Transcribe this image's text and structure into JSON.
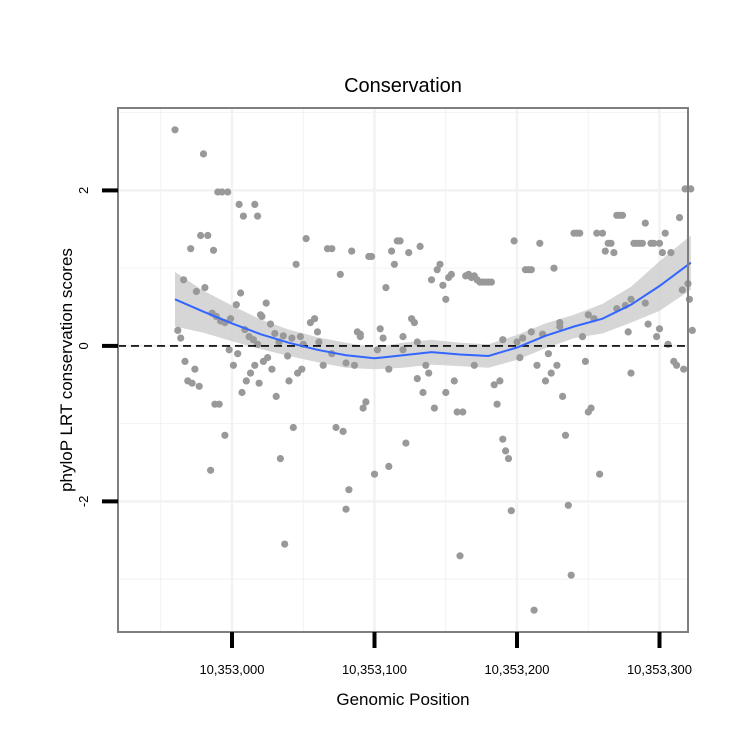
{
  "chart_data": {
    "type": "scatter",
    "title": "Conservation",
    "xlabel": "Genomic Position",
    "ylabel": "phyloP LRT conservation scores",
    "xlim": [
      10352920,
      10353320
    ],
    "ylim": [
      -3.68,
      3.06
    ],
    "x_ticks": [
      {
        "value": 10353000,
        "label": "10,353,000"
      },
      {
        "value": 10353100,
        "label": "10,353,100"
      },
      {
        "value": 10353200,
        "label": "10,353,200"
      },
      {
        "value": 10353300,
        "label": "10,353,300"
      }
    ],
    "y_ticks": [
      {
        "value": -2,
        "label": "-2"
      },
      {
        "value": 0,
        "label": "0"
      },
      {
        "value": 2,
        "label": "2"
      }
    ],
    "x_minor_grid": [
      10352950,
      10353050,
      10353150,
      10353250
    ],
    "y_minor_grid": [
      -3,
      -1,
      1,
      3
    ],
    "grid": true,
    "reference_line": {
      "y": 0,
      "style": "dashed"
    },
    "colors": {
      "points": "#999999",
      "smooth_line": "#3366ff",
      "ribbon": "#cccccc",
      "grid": "#f2f2f2",
      "panel_border": "#7f7f7f"
    },
    "smooth": {
      "x": [
        10352960,
        10352980,
        10353000,
        10353020,
        10353040,
        10353060,
        10353080,
        10353100,
        10353120,
        10353140,
        10353160,
        10353180,
        10353200,
        10353220,
        10353240,
        10353260,
        10353280,
        10353300,
        10353322
      ],
      "y": [
        0.6,
        0.44,
        0.29,
        0.15,
        0.04,
        -0.05,
        -0.12,
        -0.16,
        -0.12,
        -0.08,
        -0.11,
        -0.13,
        -0.02,
        0.13,
        0.25,
        0.35,
        0.53,
        0.77,
        1.07
      ],
      "lower": [
        0.25,
        0.17,
        0.06,
        -0.04,
        -0.13,
        -0.21,
        -0.28,
        -0.3,
        -0.28,
        -0.24,
        -0.26,
        -0.28,
        -0.18,
        -0.03,
        0.1,
        0.16,
        0.3,
        0.45,
        0.72
      ],
      "upper": [
        0.95,
        0.71,
        0.52,
        0.34,
        0.21,
        0.11,
        0.04,
        -0.02,
        0.04,
        0.08,
        0.04,
        0.02,
        0.14,
        0.29,
        0.4,
        0.54,
        0.76,
        1.09,
        1.42
      ]
    },
    "points": [
      [
        10352960,
        2.78
      ],
      [
        10352980,
        2.47
      ],
      [
        10352990,
        1.98
      ],
      [
        10352993,
        1.98
      ],
      [
        10352997,
        1.98
      ],
      [
        10353005,
        1.82
      ],
      [
        10353008,
        1.67
      ],
      [
        10353016,
        1.82
      ],
      [
        10353018,
        1.67
      ],
      [
        10352978,
        1.42
      ],
      [
        10352983,
        1.42
      ],
      [
        10352987,
        1.23
      ],
      [
        10352971,
        1.25
      ],
      [
        10352966,
        0.85
      ],
      [
        10352975,
        0.7
      ],
      [
        10352981,
        0.75
      ],
      [
        10352986,
        0.42
      ],
      [
        10352989,
        0.38
      ],
      [
        10352992,
        0.32
      ],
      [
        10352995,
        0.3
      ],
      [
        10352999,
        0.35
      ],
      [
        10353003,
        0.53
      ],
      [
        10353006,
        0.68
      ],
      [
        10353009,
        0.21
      ],
      [
        10353012,
        0.12
      ],
      [
        10353015,
        0.08
      ],
      [
        10353018,
        0.02
      ],
      [
        10353021,
        0.38
      ],
      [
        10353024,
        0.55
      ],
      [
        10353027,
        0.28
      ],
      [
        10353030,
        0.16
      ],
      [
        10353033,
        0.05
      ],
      [
        10353036,
        0.13
      ],
      [
        10353039,
        -0.13
      ],
      [
        10353042,
        0.1
      ],
      [
        10353045,
        1.05
      ],
      [
        10353048,
        0.12
      ],
      [
        10352962,
        0.2
      ],
      [
        10352964,
        0.1
      ],
      [
        10352967,
        -0.2
      ],
      [
        10352969,
        -0.45
      ],
      [
        10352972,
        -0.48
      ],
      [
        10352974,
        -0.3
      ],
      [
        10352977,
        -0.52
      ],
      [
        10352985,
        -1.6
      ],
      [
        10352988,
        -0.75
      ],
      [
        10352991,
        -0.75
      ],
      [
        10352995,
        -1.15
      ],
      [
        10352998,
        -0.05
      ],
      [
        10353001,
        -0.25
      ],
      [
        10353004,
        -0.1
      ],
      [
        10353007,
        -0.6
      ],
      [
        10353010,
        -0.45
      ],
      [
        10353013,
        -0.35
      ],
      [
        10353016,
        -0.25
      ],
      [
        10353019,
        -0.48
      ],
      [
        10353022,
        -0.2
      ],
      [
        10353025,
        -0.15
      ],
      [
        10353028,
        -0.3
      ],
      [
        10353031,
        -0.65
      ],
      [
        10353034,
        -1.45
      ],
      [
        10353037,
        -2.55
      ],
      [
        10353040,
        -0.45
      ],
      [
        10353043,
        -1.05
      ],
      [
        10353046,
        -0.35
      ],
      [
        10353049,
        -0.3
      ],
      [
        10353052,
        1.38
      ],
      [
        10353055,
        0.3
      ],
      [
        10353058,
        0.35
      ],
      [
        10353061,
        0.05
      ],
      [
        10353064,
        -0.25
      ],
      [
        10353067,
        1.25
      ],
      [
        10353070,
        1.25
      ],
      [
        10353073,
        -1.05
      ],
      [
        10353076,
        0.92
      ],
      [
        10353078,
        -1.1
      ],
      [
        10353080,
        -2.1
      ],
      [
        10353082,
        -1.85
      ],
      [
        10353084,
        1.22
      ],
      [
        10353086,
        -0.25
      ],
      [
        10353088,
        0.18
      ],
      [
        10353090,
        0.15
      ],
      [
        10353092,
        -0.8
      ],
      [
        10353094,
        -0.72
      ],
      [
        10353096,
        1.15
      ],
      [
        10353098,
        1.15
      ],
      [
        10353100,
        -1.65
      ],
      [
        10353102,
        -0.05
      ],
      [
        10353104,
        0.22
      ],
      [
        10353106,
        0.1
      ],
      [
        10353108,
        0.75
      ],
      [
        10353110,
        -1.55
      ],
      [
        10353112,
        1.22
      ],
      [
        10353114,
        1.05
      ],
      [
        10353116,
        1.35
      ],
      [
        10353118,
        1.35
      ],
      [
        10353120,
        -0.05
      ],
      [
        10353122,
        -1.25
      ],
      [
        10353124,
        1.2
      ],
      [
        10353126,
        0.35
      ],
      [
        10353128,
        0.3
      ],
      [
        10353130,
        0.05
      ],
      [
        10353132,
        1.28
      ],
      [
        10353134,
        -0.6
      ],
      [
        10353136,
        -0.25
      ],
      [
        10353138,
        -0.35
      ],
      [
        10353140,
        0.85
      ],
      [
        10353142,
        -0.8
      ],
      [
        10353144,
        0.98
      ],
      [
        10353146,
        1.05
      ],
      [
        10353148,
        0.78
      ],
      [
        10353150,
        0.6
      ],
      [
        10353152,
        0.88
      ],
      [
        10353154,
        0.92
      ],
      [
        10353156,
        -0.45
      ],
      [
        10353158,
        -0.85
      ],
      [
        10353160,
        -2.7
      ],
      [
        10353162,
        -0.85
      ],
      [
        10353164,
        0.9
      ],
      [
        10353166,
        0.92
      ],
      [
        10353168,
        0.88
      ],
      [
        10353170,
        0.9
      ],
      [
        10353172,
        0.85
      ],
      [
        10353174,
        0.82
      ],
      [
        10353176,
        0.82
      ],
      [
        10353178,
        0.82
      ],
      [
        10353180,
        0.82
      ],
      [
        10353182,
        0.82
      ],
      [
        10353184,
        -0.5
      ],
      [
        10353186,
        -0.75
      ],
      [
        10353188,
        -0.45
      ],
      [
        10353190,
        -1.2
      ],
      [
        10353192,
        -1.35
      ],
      [
        10353194,
        -1.45
      ],
      [
        10353196,
        -2.12
      ],
      [
        10353198,
        1.35
      ],
      [
        10353200,
        0.05
      ],
      [
        10353202,
        -0.15
      ],
      [
        10353204,
        0.1
      ],
      [
        10353206,
        0.98
      ],
      [
        10353208,
        0.98
      ],
      [
        10353210,
        0.98
      ],
      [
        10353212,
        -3.4
      ],
      [
        10353214,
        -0.25
      ],
      [
        10353216,
        1.32
      ],
      [
        10353218,
        0.15
      ],
      [
        10353220,
        -0.45
      ],
      [
        10353222,
        -0.1
      ],
      [
        10353224,
        -0.35
      ],
      [
        10353226,
        1.0
      ],
      [
        10353228,
        -0.25
      ],
      [
        10353230,
        0.25
      ],
      [
        10353232,
        -0.65
      ],
      [
        10353234,
        -1.15
      ],
      [
        10353236,
        -2.05
      ],
      [
        10353238,
        -2.95
      ],
      [
        10353240,
        1.45
      ],
      [
        10353242,
        1.45
      ],
      [
        10353244,
        1.45
      ],
      [
        10353246,
        0.12
      ],
      [
        10353248,
        -0.2
      ],
      [
        10353250,
        -0.85
      ],
      [
        10353252,
        -0.8
      ],
      [
        10353254,
        0.35
      ],
      [
        10353256,
        1.45
      ],
      [
        10353258,
        -1.65
      ],
      [
        10353260,
        1.45
      ],
      [
        10353262,
        1.22
      ],
      [
        10353264,
        1.32
      ],
      [
        10353266,
        1.32
      ],
      [
        10353268,
        1.2
      ],
      [
        10353270,
        1.68
      ],
      [
        10353272,
        1.68
      ],
      [
        10353274,
        1.68
      ],
      [
        10353276,
        0.52
      ],
      [
        10353278,
        0.18
      ],
      [
        10353280,
        -0.35
      ],
      [
        10353282,
        1.32
      ],
      [
        10353284,
        1.32
      ],
      [
        10353286,
        1.32
      ],
      [
        10353288,
        1.32
      ],
      [
        10353290,
        1.58
      ],
      [
        10353292,
        0.28
      ],
      [
        10353294,
        1.32
      ],
      [
        10353296,
        1.32
      ],
      [
        10353298,
        0.12
      ],
      [
        10353300,
        1.32
      ],
      [
        10353302,
        1.2
      ],
      [
        10353304,
        1.45
      ],
      [
        10353306,
        0.02
      ],
      [
        10353308,
        1.2
      ],
      [
        10353310,
        -0.2
      ],
      [
        10353312,
        -0.25
      ],
      [
        10353314,
        1.65
      ],
      [
        10353316,
        0.72
      ],
      [
        10353318,
        2.02
      ],
      [
        10353320,
        0.8
      ],
      [
        10353322,
        2.02
      ],
      [
        10353323,
        0.2
      ],
      [
        10353321,
        0.6
      ],
      [
        10353317,
        -0.3
      ],
      [
        10353020,
        0.4
      ],
      [
        10353050,
        0.02
      ],
      [
        10353060,
        0.18
      ],
      [
        10353070,
        -0.1
      ],
      [
        10353080,
        -0.22
      ],
      [
        10353090,
        0.12
      ],
      [
        10353110,
        -0.3
      ],
      [
        10353120,
        0.12
      ],
      [
        10353130,
        -0.42
      ],
      [
        10353150,
        -0.6
      ],
      [
        10353170,
        -0.25
      ],
      [
        10353190,
        0.08
      ],
      [
        10353210,
        0.18
      ],
      [
        10353230,
        0.3
      ],
      [
        10353250,
        0.4
      ],
      [
        10353270,
        0.48
      ],
      [
        10353280,
        0.6
      ],
      [
        10353290,
        0.55
      ],
      [
        10353300,
        0.22
      ]
    ]
  }
}
